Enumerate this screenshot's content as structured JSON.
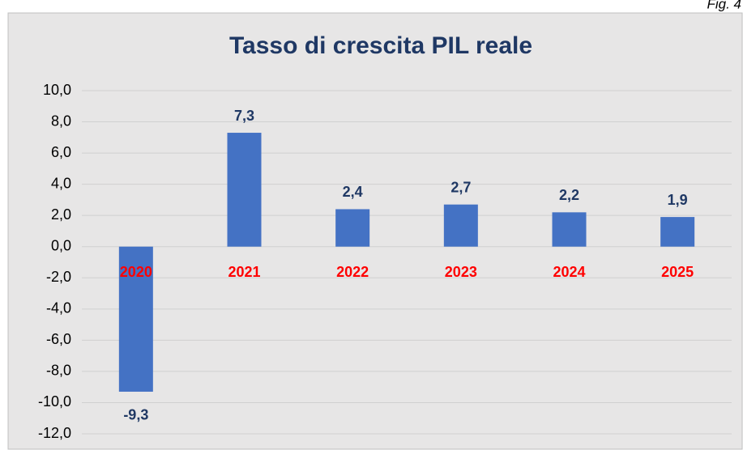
{
  "caption": "Fig. 4",
  "chart_data": {
    "type": "bar",
    "title": "Tasso di crescita PIL reale",
    "categories": [
      "2020",
      "2021",
      "2022",
      "2023",
      "2024",
      "2025"
    ],
    "values": [
      -9.3,
      7.3,
      2.4,
      2.7,
      2.2,
      1.9
    ],
    "value_labels": [
      "-9,3",
      "7,3",
      "2,4",
      "2,7",
      "2,2",
      "1,9"
    ],
    "color": "#4472c4",
    "ylim": [
      -12,
      10
    ],
    "yticks": [
      {
        "value": -12,
        "label": "-12,0"
      },
      {
        "value": -10,
        "label": "-10,0"
      },
      {
        "value": -8,
        "label": "-8,0"
      },
      {
        "value": -6,
        "label": "-6,0"
      },
      {
        "value": -4,
        "label": "-4,0"
      },
      {
        "value": -2,
        "label": "-2,0"
      },
      {
        "value": 0,
        "label": "0,0"
      },
      {
        "value": 2,
        "label": "2,0"
      },
      {
        "value": 4,
        "label": "4,0"
      },
      {
        "value": 6,
        "label": "6,0"
      },
      {
        "value": 8,
        "label": "8,0"
      },
      {
        "value": 10,
        "label": "10,0"
      }
    ],
    "grid": true
  }
}
